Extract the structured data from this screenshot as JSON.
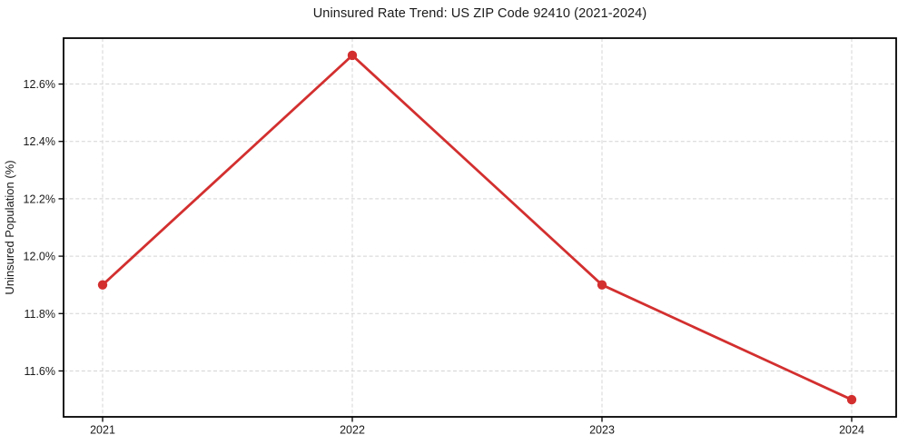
{
  "chart_data": {
    "type": "line",
    "title": "Uninsured Rate Trend: US ZIP Code 92410 (2021-2024)",
    "ylabel": "Uninsured Population (%)",
    "categories": [
      "2021",
      "2022",
      "2023",
      "2024"
    ],
    "values": [
      11.9,
      12.7,
      11.9,
      11.5
    ],
    "ylim": [
      11.44,
      12.76
    ],
    "yticks": [
      11.6,
      11.8,
      12.0,
      12.2,
      12.4,
      12.6
    ],
    "ytick_labels": [
      "11.6%",
      "11.8%",
      "12.0%",
      "12.2%",
      "12.4%",
      "12.6%"
    ],
    "grid": true,
    "grid_style": "dashed",
    "legend": false,
    "marker": "circle",
    "colors": {
      "line": "#d32f2f",
      "grid": "#d4d4d4",
      "spine": "#000000",
      "text": "#1a1a1a",
      "background": "#ffffff"
    }
  }
}
